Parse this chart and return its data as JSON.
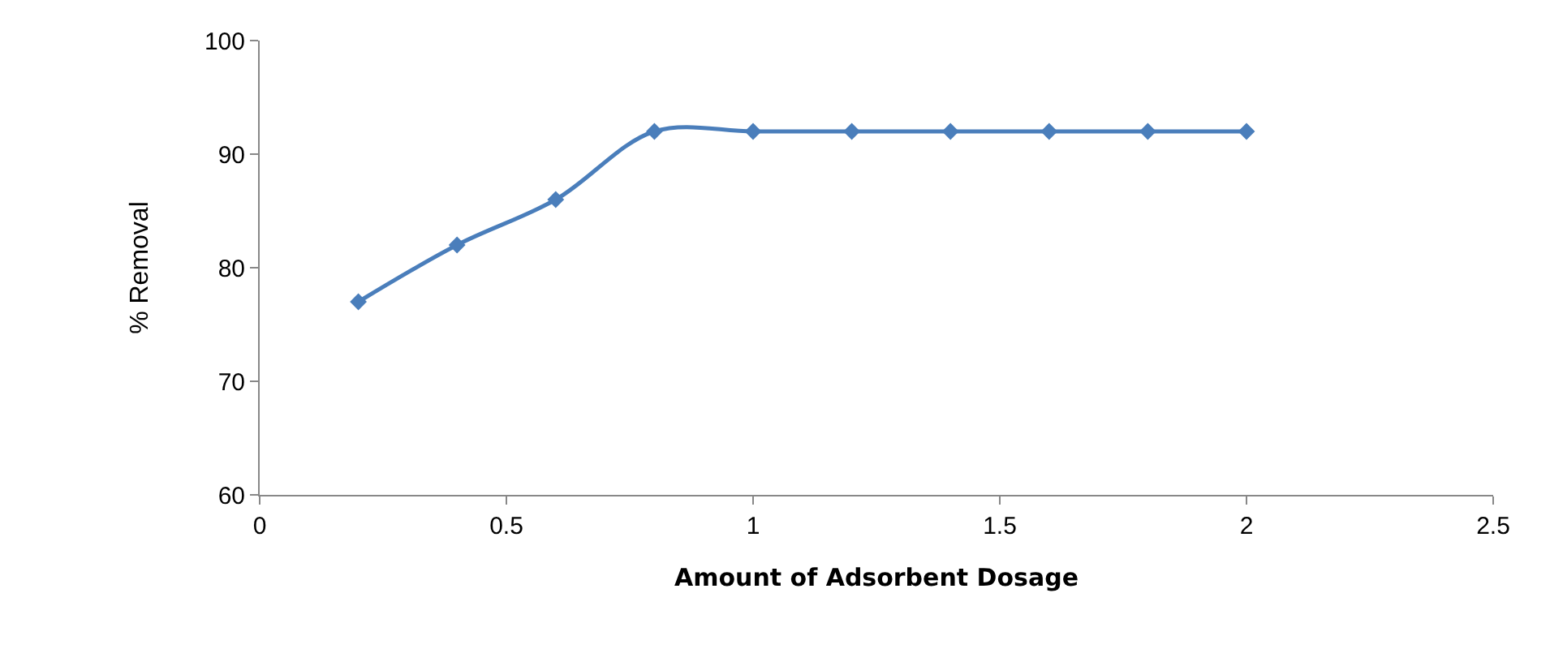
{
  "chart_data": {
    "type": "line",
    "xlabel": "Amount of Adsorbent Dosage",
    "ylabel": "% Removal",
    "x": [
      0.2,
      0.4,
      0.6,
      0.8,
      1,
      1.2,
      1.4,
      1.6,
      1.8,
      2
    ],
    "series": [
      {
        "color": "#4a7ebb",
        "values": [
          77,
          82,
          86,
          92,
          92,
          92,
          92,
          92,
          92,
          92
        ]
      }
    ],
    "xlim": [
      0,
      2.5
    ],
    "xticks": [
      0,
      0.5,
      1,
      1.5,
      2,
      2.5
    ],
    "ylim": [
      60,
      100
    ],
    "yticks": [
      60,
      70,
      80,
      90,
      100
    ],
    "grid": false,
    "legend": false,
    "marker": "diamond",
    "line_style": "solid"
  }
}
